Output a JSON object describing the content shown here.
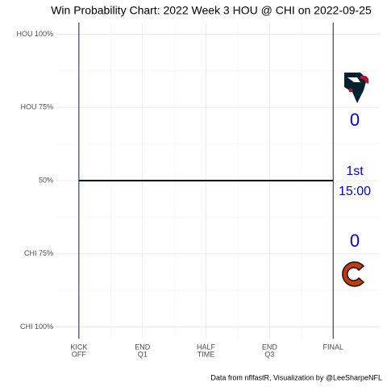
{
  "chart_data": {
    "type": "line",
    "title": "Win Probability Chart: 2022 Week 3 HOU @ CHI on 2022-09-25",
    "x": [
      0,
      60
    ],
    "values": [
      50,
      50
    ],
    "color": "#000000",
    "xlim": [
      -5.3,
      70.8
    ],
    "ylim": [
      -4,
      104
    ],
    "xticks": [
      {
        "value": 0,
        "label": [
          "KICK",
          "OFF"
        ]
      },
      {
        "value": 15,
        "label": [
          "END",
          "Q1"
        ]
      },
      {
        "value": 30,
        "label": [
          "HALF",
          "TIME"
        ]
      },
      {
        "value": 45,
        "label": [
          "END",
          "Q3"
        ]
      },
      {
        "value": 60,
        "label": [
          "FINAL"
        ]
      }
    ],
    "yticks": [
      {
        "value": 0,
        "label": "CHI 100%"
      },
      {
        "value": 25,
        "label": "CHI 75%"
      },
      {
        "value": 50,
        "label": "50%"
      },
      {
        "value": 75,
        "label": "HOU 75%"
      },
      {
        "value": 100,
        "label": "HOU 100%"
      }
    ],
    "grid": true,
    "boundary_color": "#191970"
  },
  "scoreboard": {
    "away_score": 0,
    "home_score": 0,
    "period": "1st",
    "clock": "15:00"
  },
  "caption": "Data from nflfastR, Visualization by @LeeSharpeNFL"
}
